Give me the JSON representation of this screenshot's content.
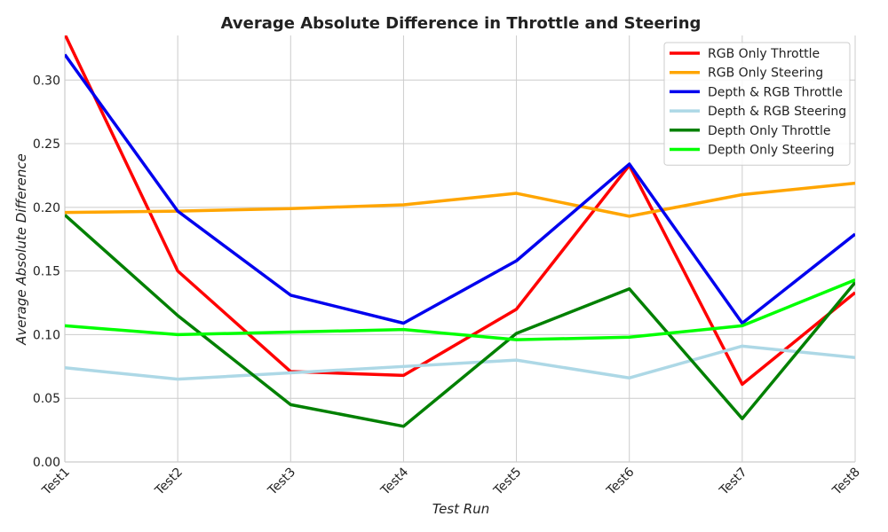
{
  "chart_data": {
    "type": "line",
    "title": "Average Absolute Difference in Throttle and Steering",
    "xlabel": "Test Run",
    "ylabel": "Average Absolute Difference",
    "categories": [
      "Test1",
      "Test2",
      "Test3",
      "Test4",
      "Test5",
      "Test6",
      "Test7",
      "Test8"
    ],
    "ylim": [
      0,
      0.335
    ],
    "yticks": [
      "0.00",
      "0.05",
      "0.10",
      "0.15",
      "0.20",
      "0.25",
      "0.30"
    ],
    "grid": true,
    "legend_position": "top-right",
    "series": [
      {
        "name": "RGB Only Throttle",
        "color": "#ff0000",
        "values": [
          0.336,
          0.15,
          0.071,
          0.068,
          0.12,
          0.233,
          0.061,
          0.133
        ]
      },
      {
        "name": "RGB Only Steering",
        "color": "#ffa500",
        "values": [
          0.196,
          0.197,
          0.199,
          0.202,
          0.211,
          0.193,
          0.21,
          0.219
        ]
      },
      {
        "name": "Depth & RGB Throttle",
        "color": "#0000ee",
        "values": [
          0.32,
          0.197,
          0.131,
          0.109,
          0.158,
          0.234,
          0.109,
          0.179
        ]
      },
      {
        "name": "Depth & RGB Steering",
        "color": "#add8e6",
        "values": [
          0.074,
          0.065,
          0.07,
          0.075,
          0.08,
          0.066,
          0.091,
          0.082
        ]
      },
      {
        "name": "Depth Only Throttle",
        "color": "#008000",
        "values": [
          0.194,
          0.115,
          0.045,
          0.028,
          0.101,
          0.136,
          0.034,
          0.141
        ]
      },
      {
        "name": "Depth Only Steering",
        "color": "#00ff00",
        "values": [
          0.107,
          0.1,
          0.102,
          0.104,
          0.096,
          0.098,
          0.107,
          0.143
        ]
      }
    ]
  }
}
